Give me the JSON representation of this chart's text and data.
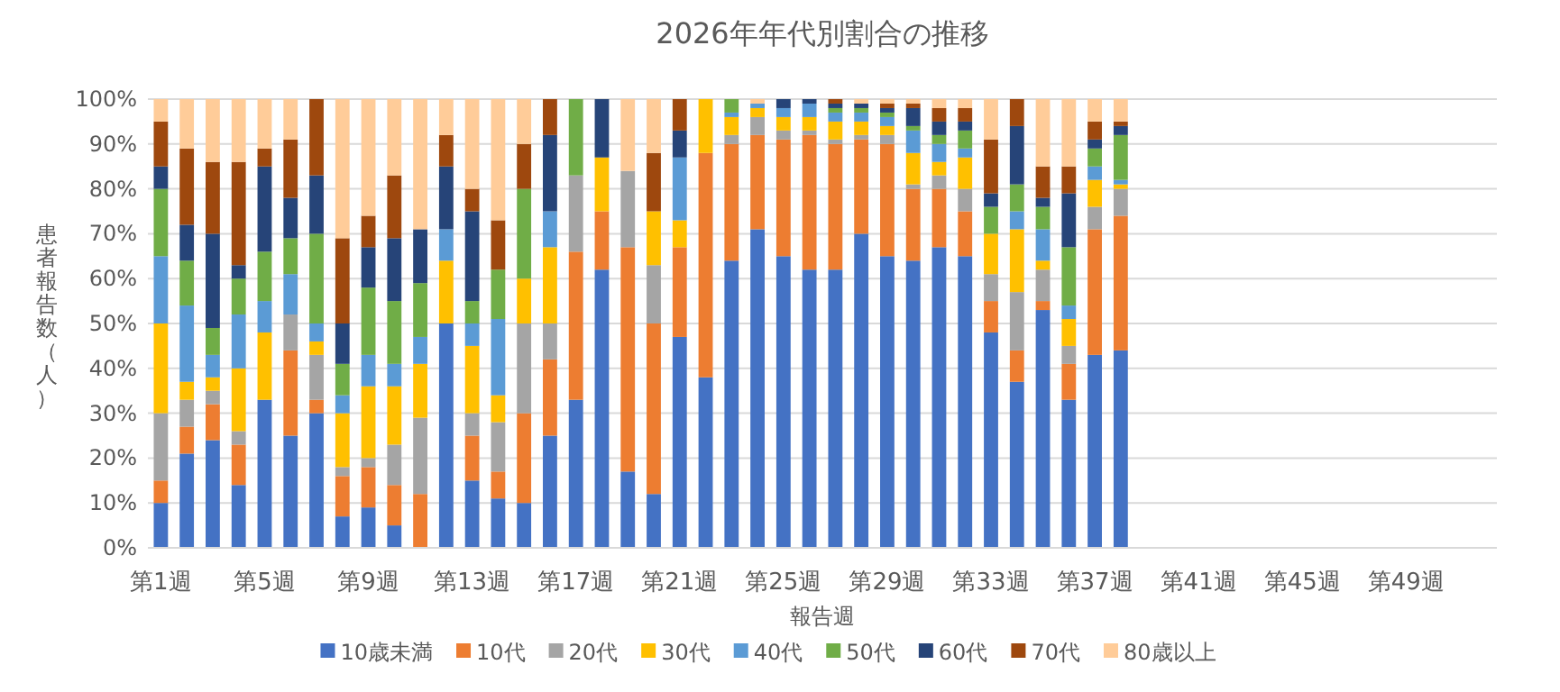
{
  "chart_data": {
    "type": "bar",
    "stacked": true,
    "title": "2026年年代別割合の推移",
    "xlabel": "報告週",
    "ylabel": "患者報告数（人）",
    "categories": [
      "第1週",
      null,
      null,
      null,
      "第5週",
      null,
      null,
      null,
      "第9週",
      null,
      null,
      null,
      "第13週",
      null,
      null,
      null,
      "第17週",
      null,
      null,
      null,
      "第21週",
      null,
      null,
      null,
      "第25週",
      null,
      null,
      null,
      "第29週",
      null,
      null,
      null,
      "第33週",
      null,
      null,
      null,
      "第37週",
      null,
      null,
      null,
      "第41週",
      null,
      null,
      null,
      "第45週",
      null,
      null,
      null,
      "第49週",
      null,
      null,
      null
    ],
    "series": [
      {
        "name": "10歳未満",
        "color": "#4472c4",
        "values": [
          10,
          21,
          24,
          14,
          33,
          25,
          30,
          7,
          9,
          5,
          0,
          50,
          15,
          11,
          10,
          25,
          33,
          62,
          17,
          12,
          47,
          38,
          64,
          71,
          65,
          62,
          62,
          70,
          65,
          64,
          67,
          65,
          48,
          37,
          53,
          33,
          43,
          44,
          null,
          null,
          null,
          null,
          null,
          null,
          null,
          null,
          null,
          null,
          null,
          null,
          null,
          null
        ]
      },
      {
        "name": "10代",
        "color": "#ed7d31",
        "values": [
          5,
          6,
          8,
          9,
          0,
          19,
          3,
          9,
          9,
          9,
          12,
          0,
          10,
          6,
          20,
          17,
          33,
          13,
          50,
          38,
          20,
          50,
          26,
          21,
          26,
          30,
          28,
          21,
          25,
          16,
          13,
          10,
          7,
          7,
          2,
          8,
          28,
          30,
          null,
          null,
          null,
          null,
          null,
          null,
          null,
          null,
          null,
          null,
          null,
          null,
          null,
          null
        ]
      },
      {
        "name": "20代",
        "color": "#a5a5a5",
        "values": [
          15,
          6,
          3,
          3,
          0,
          8,
          10,
          2,
          2,
          9,
          17,
          0,
          5,
          11,
          20,
          8,
          17,
          0,
          17,
          13,
          0,
          0,
          2,
          4,
          2,
          1,
          1,
          1,
          2,
          1,
          3,
          5,
          6,
          13,
          7,
          4,
          5,
          6,
          null,
          null,
          null,
          null,
          null,
          null,
          null,
          null,
          null,
          null,
          null,
          null,
          null,
          null
        ]
      },
      {
        "name": "30代",
        "color": "#ffc000",
        "values": [
          20,
          4,
          3,
          14,
          15,
          0,
          3,
          12,
          16,
          13,
          12,
          14,
          15,
          6,
          10,
          17,
          0,
          12,
          0,
          12,
          6,
          12,
          4,
          2,
          3,
          3,
          4,
          3,
          2,
          7,
          3,
          7,
          9,
          14,
          2,
          6,
          6,
          1,
          null,
          null,
          null,
          null,
          null,
          null,
          null,
          null,
          null,
          null,
          null,
          null,
          null,
          null
        ]
      },
      {
        "name": "40代",
        "color": "#5b9bd5",
        "values": [
          15,
          17,
          5,
          12,
          7,
          9,
          4,
          4,
          7,
          5,
          6,
          7,
          5,
          17,
          0,
          8,
          0,
          0,
          0,
          0,
          14,
          0,
          1,
          1,
          2,
          3,
          2,
          2,
          2,
          5,
          4,
          2,
          0,
          4,
          7,
          3,
          3,
          1,
          null,
          null,
          null,
          null,
          null,
          null,
          null,
          null,
          null,
          null,
          null,
          null,
          null,
          null
        ]
      },
      {
        "name": "50代",
        "color": "#70ad47",
        "values": [
          15,
          10,
          6,
          8,
          11,
          8,
          20,
          7,
          15,
          14,
          12,
          0,
          5,
          11,
          20,
          0,
          17,
          0,
          0,
          0,
          0,
          0,
          3,
          0,
          0,
          0,
          1,
          1,
          1,
          1,
          2,
          4,
          6,
          6,
          5,
          13,
          4,
          10,
          null,
          null,
          null,
          null,
          null,
          null,
          null,
          null,
          null,
          null,
          null,
          null,
          null,
          null
        ]
      },
      {
        "name": "60代",
        "color": "#264478",
        "values": [
          5,
          8,
          21,
          3,
          19,
          9,
          13,
          9,
          9,
          14,
          12,
          14,
          20,
          0,
          0,
          17,
          0,
          13,
          0,
          0,
          6,
          0,
          0,
          0,
          2,
          1,
          1,
          1,
          1,
          4,
          3,
          2,
          3,
          13,
          2,
          12,
          2,
          2,
          null,
          null,
          null,
          null,
          null,
          null,
          null,
          null,
          null,
          null,
          null,
          null,
          null,
          null
        ]
      },
      {
        "name": "70代",
        "color": "#9e480e",
        "values": [
          10,
          17,
          16,
          23,
          4,
          13,
          17,
          19,
          7,
          14,
          0,
          7,
          5,
          11,
          10,
          8,
          0,
          0,
          0,
          13,
          7,
          0,
          0,
          0,
          0,
          0,
          1,
          0,
          1,
          1,
          3,
          3,
          12,
          6,
          7,
          6,
          4,
          1,
          null,
          null,
          null,
          null,
          null,
          null,
          null,
          null,
          null,
          null,
          null,
          null,
          null,
          null
        ]
      },
      {
        "name": "80歳以上",
        "color": "#ffcc99",
        "values": [
          5,
          11,
          14,
          14,
          11,
          9,
          0,
          31,
          26,
          17,
          29,
          8,
          20,
          27,
          10,
          0,
          0,
          0,
          16,
          12,
          0,
          0,
          0,
          1,
          0,
          0,
          0,
          1,
          1,
          1,
          2,
          2,
          9,
          0,
          15,
          15,
          5,
          5,
          null,
          null,
          null,
          null,
          null,
          null,
          null,
          null,
          null,
          null,
          null,
          null,
          null,
          null
        ]
      }
    ],
    "ylim": [
      0,
      100
    ],
    "yticks": [
      {
        "value": 0,
        "label": "0%"
      },
      {
        "value": 10,
        "label": "10%"
      },
      {
        "value": 20,
        "label": "20%"
      },
      {
        "value": 30,
        "label": "30%"
      },
      {
        "value": 40,
        "label": "40%"
      },
      {
        "value": 50,
        "label": "50%"
      },
      {
        "value": 60,
        "label": "60%"
      },
      {
        "value": 70,
        "label": "70%"
      },
      {
        "value": 80,
        "label": "80%"
      },
      {
        "value": 90,
        "label": "90%"
      },
      {
        "value": 100,
        "label": "100%"
      }
    ],
    "grid": "y",
    "legend": "bottom"
  }
}
